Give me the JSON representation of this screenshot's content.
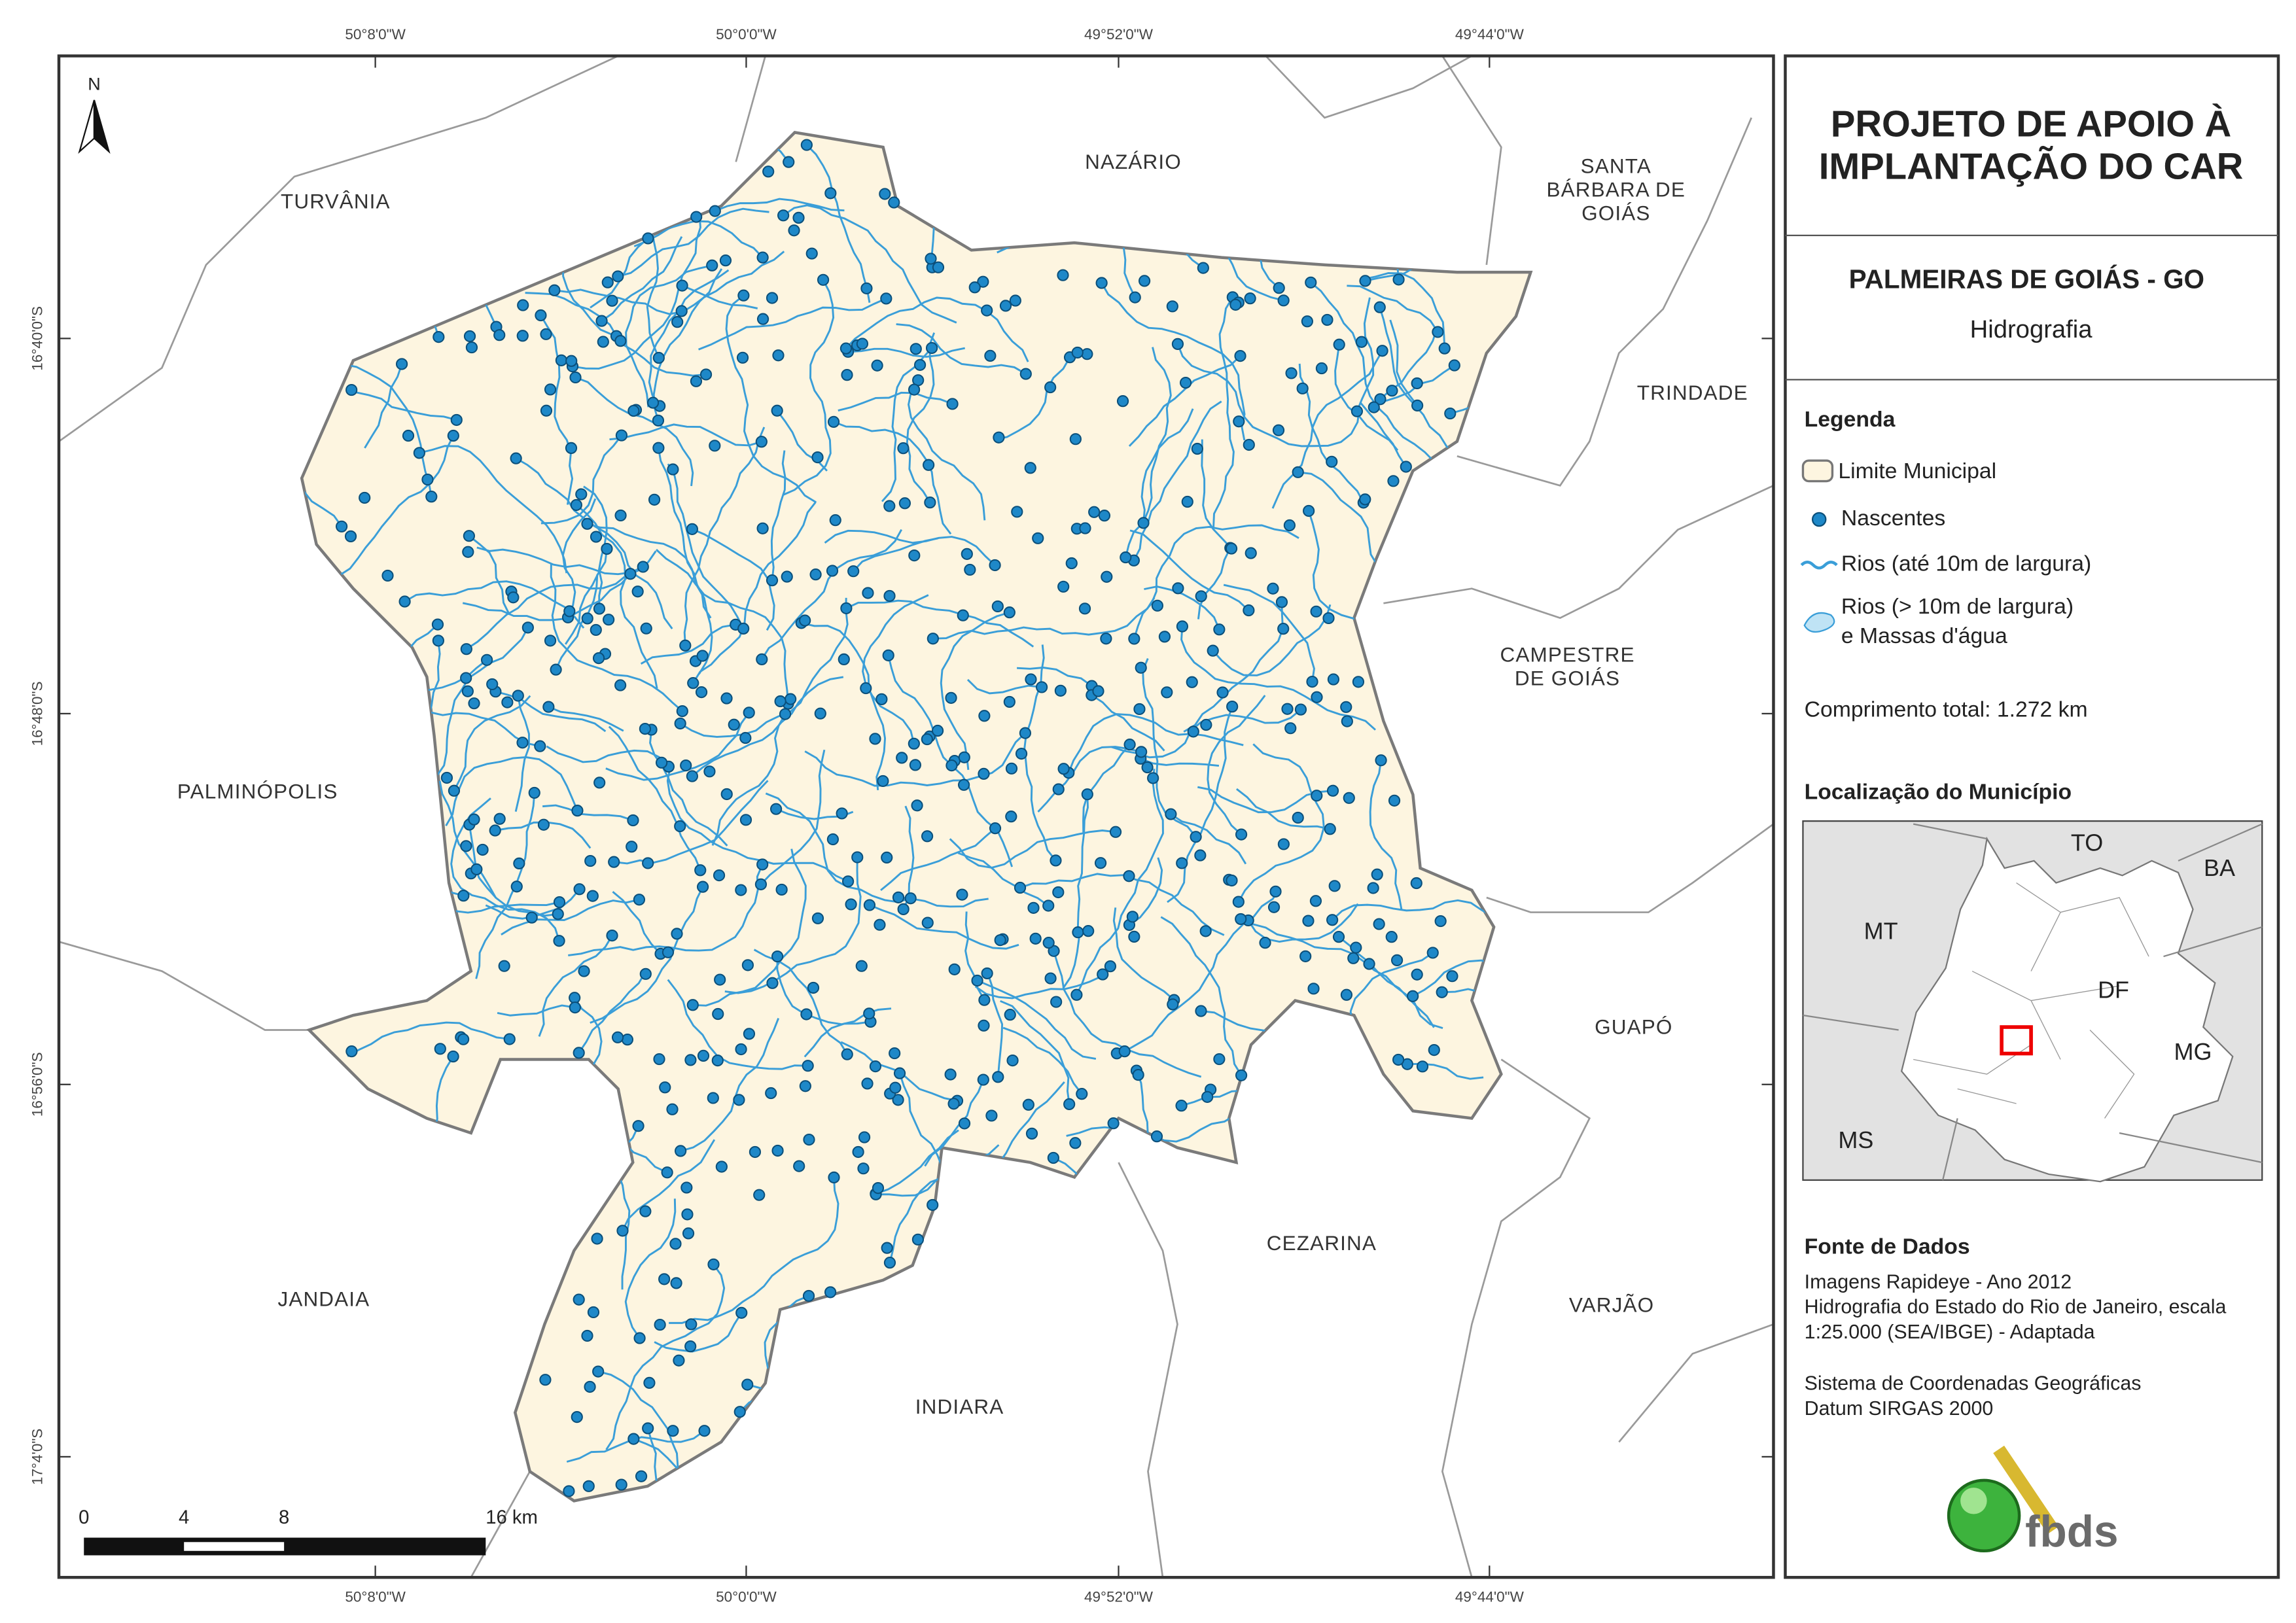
{
  "map": {
    "coordinates_top": [
      "50°8'0\"W",
      "50°0'0\"W",
      "49°52'0\"W",
      "49°44'0\"W"
    ],
    "coordinates_bottom": [
      "50°8'0\"W",
      "50°0'0\"W",
      "49°52'0\"W",
      "49°44'0\"W"
    ],
    "coordinates_left": [
      "16°40'0\"S",
      "16°48'0\"S",
      "16°56'0\"S",
      "17°4'0\"S"
    ],
    "north": "N",
    "neighbors": [
      {
        "lines": [
          "TURVÂNIA"
        ]
      },
      {
        "lines": [
          "NAZÁRIO"
        ]
      },
      {
        "lines": [
          "SANTA",
          "BÁRBARA DE",
          "GOIÁS"
        ]
      },
      {
        "lines": [
          "TRINDADE"
        ]
      },
      {
        "lines": [
          "CAMPESTRE",
          "DE GOIÁS"
        ]
      },
      {
        "lines": [
          "PALMINÓPOLIS"
        ]
      },
      {
        "lines": [
          "GUAPÓ"
        ]
      },
      {
        "lines": [
          "CEZARINA"
        ]
      },
      {
        "lines": [
          "JANDAIA"
        ]
      },
      {
        "lines": [
          "VARJÃO"
        ]
      },
      {
        "lines": [
          "INDIARA"
        ]
      }
    ],
    "scale_bar": [
      "0",
      "4",
      "8",
      "16 km"
    ]
  },
  "panel": {
    "title": [
      "PROJETO DE APOIO À",
      "IMPLANTAÇÃO DO CAR"
    ],
    "municipality": "PALMEIRAS DE GOIÁS - GO",
    "theme": "Hidrografia",
    "legend": {
      "title": "Legenda",
      "items": [
        {
          "lines": [
            "Limite Municipal"
          ]
        },
        {
          "lines": [
            "Nascentes"
          ]
        },
        {
          "lines": [
            "Rios (até 10m de largura)"
          ]
        },
        {
          "lines": [
            "Rios (> 10m de largura)",
            "e Massas d'água"
          ]
        }
      ]
    },
    "total_length": "Comprimento total: 1.272 km",
    "location": {
      "title": "Localização do Município",
      "labels": [
        "TO",
        "BA",
        "MT",
        "DF",
        "MG",
        "MS"
      ]
    },
    "sources": {
      "title": "Fonte de Dados",
      "data_lines": [
        "Imagens Rapideye - Ano 2012",
        "Hidrografia do Estado do Rio de Janeiro, escala",
        "1:25.000 (SEA/IBGE) - Adaptada"
      ],
      "reference_lines": [
        "Sistema de Coordenadas Geográficas",
        "Datum SIRGAS 2000"
      ]
    },
    "logo": "fbds"
  }
}
